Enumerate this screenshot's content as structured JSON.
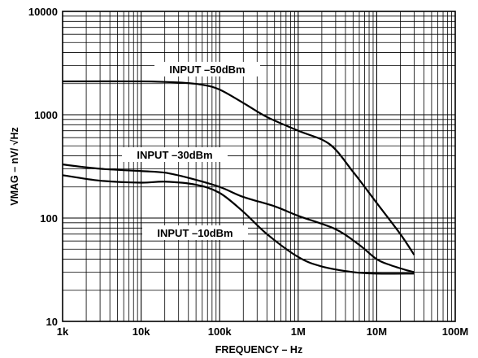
{
  "chart_data": {
    "type": "line",
    "title": "",
    "xlabel": "FREQUENCY – Hz",
    "ylabel": "VMAG – nV/ √Hz",
    "x_scale": "log",
    "y_scale": "log",
    "xlim": [
      1000,
      100000000
    ],
    "ylim": [
      10,
      10000
    ],
    "grid": true,
    "legend": "none",
    "x_ticks": [
      {
        "value": 1000,
        "label": "1k"
      },
      {
        "value": 10000,
        "label": "10k"
      },
      {
        "value": 100000,
        "label": "100k"
      },
      {
        "value": 1000000,
        "label": "1M"
      },
      {
        "value": 10000000,
        "label": "10M"
      },
      {
        "value": 100000000,
        "label": "100M"
      }
    ],
    "y_ticks": [
      {
        "value": 10,
        "label": "10"
      },
      {
        "value": 100,
        "label": "100"
      },
      {
        "value": 1000,
        "label": "1000"
      },
      {
        "value": 10000,
        "label": "10000"
      }
    ],
    "series": [
      {
        "name": "INPUT –50dBm",
        "points": [
          [
            1000,
            2100
          ],
          [
            10000,
            2100
          ],
          [
            30000,
            2050
          ],
          [
            60000,
            1950
          ],
          [
            100000,
            1750
          ],
          [
            200000,
            1300
          ],
          [
            400000,
            950
          ],
          [
            1000000,
            700
          ],
          [
            2500000,
            520
          ],
          [
            5000000,
            280
          ],
          [
            10000000,
            140
          ],
          [
            20000000,
            70
          ],
          [
            30000000,
            44
          ]
        ]
      },
      {
        "name": "INPUT –30dBm",
        "points": [
          [
            1000,
            330
          ],
          [
            3000,
            300
          ],
          [
            10000,
            285
          ],
          [
            20000,
            275
          ],
          [
            40000,
            245
          ],
          [
            100000,
            200
          ],
          [
            200000,
            160
          ],
          [
            500000,
            130
          ],
          [
            1000000,
            105
          ],
          [
            3000000,
            78
          ],
          [
            6000000,
            55
          ],
          [
            10000000,
            40
          ],
          [
            15000000,
            35
          ],
          [
            25000000,
            31
          ],
          [
            30000000,
            30
          ]
        ]
      },
      {
        "name": "INPUT –10dBm",
        "points": [
          [
            1000,
            260
          ],
          [
            3000,
            230
          ],
          [
            10000,
            220
          ],
          [
            20000,
            225
          ],
          [
            50000,
            210
          ],
          [
            100000,
            175
          ],
          [
            200000,
            115
          ],
          [
            400000,
            70
          ],
          [
            1000000,
            42
          ],
          [
            2000000,
            34
          ],
          [
            5000000,
            30
          ],
          [
            10000000,
            29
          ],
          [
            30000000,
            29
          ]
        ]
      }
    ],
    "annotations": [
      {
        "text": "INPUT –50dBm",
        "series": 0
      },
      {
        "text": "INPUT –30dBm",
        "series": 1
      },
      {
        "text": "INPUT –10dBm",
        "series": 2
      }
    ]
  }
}
